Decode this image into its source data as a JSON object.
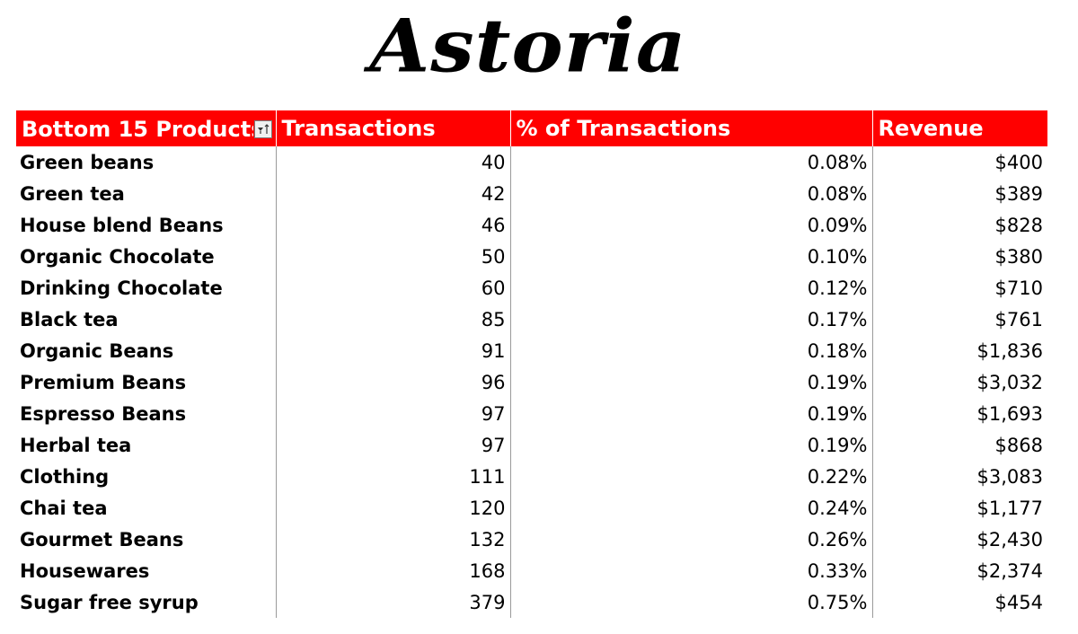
{
  "title": "Astoria",
  "table": {
    "headers": [
      "Bottom 15 Products",
      "Transactions",
      "% of Transactions",
      "Revenue"
    ],
    "rows": [
      {
        "product": "Green beans",
        "transactions": "40",
        "pct": "0.08%",
        "revenue": "$400"
      },
      {
        "product": "Green tea",
        "transactions": "42",
        "pct": "0.08%",
        "revenue": "$389"
      },
      {
        "product": "House blend Beans",
        "transactions": "46",
        "pct": "0.09%",
        "revenue": "$828"
      },
      {
        "product": "Organic Chocolate",
        "transactions": "50",
        "pct": "0.10%",
        "revenue": "$380"
      },
      {
        "product": "Drinking Chocolate",
        "transactions": "60",
        "pct": "0.12%",
        "revenue": "$710"
      },
      {
        "product": "Black tea",
        "transactions": "85",
        "pct": "0.17%",
        "revenue": "$761"
      },
      {
        "product": "Organic Beans",
        "transactions": "91",
        "pct": "0.18%",
        "revenue": "$1,836"
      },
      {
        "product": "Premium Beans",
        "transactions": "96",
        "pct": "0.19%",
        "revenue": "$3,032"
      },
      {
        "product": "Espresso Beans",
        "transactions": "97",
        "pct": "0.19%",
        "revenue": "$1,693"
      },
      {
        "product": "Herbal tea",
        "transactions": "97",
        "pct": "0.19%",
        "revenue": "$868"
      },
      {
        "product": "Clothing",
        "transactions": "111",
        "pct": "0.22%",
        "revenue": "$3,083"
      },
      {
        "product": "Chai tea",
        "transactions": "120",
        "pct": "0.24%",
        "revenue": "$1,177"
      },
      {
        "product": "Gourmet Beans",
        "transactions": "132",
        "pct": "0.26%",
        "revenue": "$2,430"
      },
      {
        "product": "Housewares",
        "transactions": "168",
        "pct": "0.33%",
        "revenue": "$2,374"
      },
      {
        "product": "Sugar free syrup",
        "transactions": "379",
        "pct": "0.75%",
        "revenue": "$454"
      }
    ]
  },
  "colors": {
    "header_bg": "#ff0000",
    "header_text": "#ffffff"
  },
  "icons": {
    "filter": "sort-filter-icon"
  }
}
